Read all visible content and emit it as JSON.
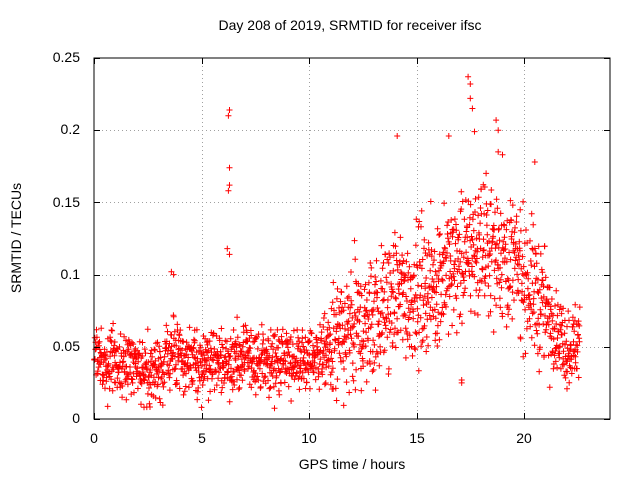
{
  "chart_data": {
    "type": "scatter",
    "title": "Day 208 of 2019, SRMTID for receiver ifsc",
    "xlabel": "GPS time / hours",
    "ylabel": "SRMTID / TECUs",
    "xlim": [
      0,
      24
    ],
    "ylim": [
      0,
      0.25
    ],
    "x_ticks": [
      "0",
      "5",
      "10",
      "15",
      "20"
    ],
    "y_ticks": [
      "0",
      "0.05",
      "0.1",
      "0.15",
      "0.2",
      "0.25"
    ],
    "grid": true,
    "marker": "+",
    "color": "#ff0000",
    "x_span_hours": [
      0,
      22.6
    ],
    "trend": [
      {
        "x": 0.0,
        "y": 0.04
      },
      {
        "x": 1.0,
        "y": 0.04
      },
      {
        "x": 2.0,
        "y": 0.036
      },
      {
        "x": 3.0,
        "y": 0.034
      },
      {
        "x": 3.6,
        "y": 0.045
      },
      {
        "x": 4.0,
        "y": 0.04
      },
      {
        "x": 5.0,
        "y": 0.04
      },
      {
        "x": 6.0,
        "y": 0.04
      },
      {
        "x": 7.0,
        "y": 0.042
      },
      {
        "x": 8.0,
        "y": 0.04
      },
      {
        "x": 9.0,
        "y": 0.04
      },
      {
        "x": 10.0,
        "y": 0.042
      },
      {
        "x": 11.0,
        "y": 0.048
      },
      {
        "x": 12.0,
        "y": 0.058
      },
      {
        "x": 13.0,
        "y": 0.07
      },
      {
        "x": 14.0,
        "y": 0.085
      },
      {
        "x": 15.0,
        "y": 0.088
      },
      {
        "x": 16.0,
        "y": 0.095
      },
      {
        "x": 17.0,
        "y": 0.11
      },
      {
        "x": 18.0,
        "y": 0.12
      },
      {
        "x": 19.0,
        "y": 0.115
      },
      {
        "x": 20.0,
        "y": 0.1
      },
      {
        "x": 21.0,
        "y": 0.075
      },
      {
        "x": 22.0,
        "y": 0.05
      },
      {
        "x": 22.6,
        "y": 0.055
      }
    ],
    "outliers": [
      {
        "x": 6.3,
        "y": 0.214
      },
      {
        "x": 6.25,
        "y": 0.21
      },
      {
        "x": 6.3,
        "y": 0.174
      },
      {
        "x": 6.3,
        "y": 0.162
      },
      {
        "x": 6.25,
        "y": 0.158
      },
      {
        "x": 6.2,
        "y": 0.118
      },
      {
        "x": 6.3,
        "y": 0.114
      },
      {
        "x": 3.6,
        "y": 0.102
      },
      {
        "x": 3.7,
        "y": 0.1
      },
      {
        "x": 14.1,
        "y": 0.196
      },
      {
        "x": 17.4,
        "y": 0.237
      },
      {
        "x": 17.5,
        "y": 0.232
      },
      {
        "x": 17.5,
        "y": 0.222
      },
      {
        "x": 17.6,
        "y": 0.215
      },
      {
        "x": 17.7,
        "y": 0.199
      },
      {
        "x": 18.7,
        "y": 0.207
      },
      {
        "x": 18.8,
        "y": 0.2
      },
      {
        "x": 16.5,
        "y": 0.196
      },
      {
        "x": 18.8,
        "y": 0.185
      },
      {
        "x": 19.0,
        "y": 0.183
      },
      {
        "x": 20.5,
        "y": 0.178
      },
      {
        "x": 17.1,
        "y": 0.025
      },
      {
        "x": 17.1,
        "y": 0.027
      },
      {
        "x": 5.0,
        "y": 0.008
      },
      {
        "x": 21.2,
        "y": 0.022
      },
      {
        "x": 22.0,
        "y": 0.021
      }
    ]
  }
}
